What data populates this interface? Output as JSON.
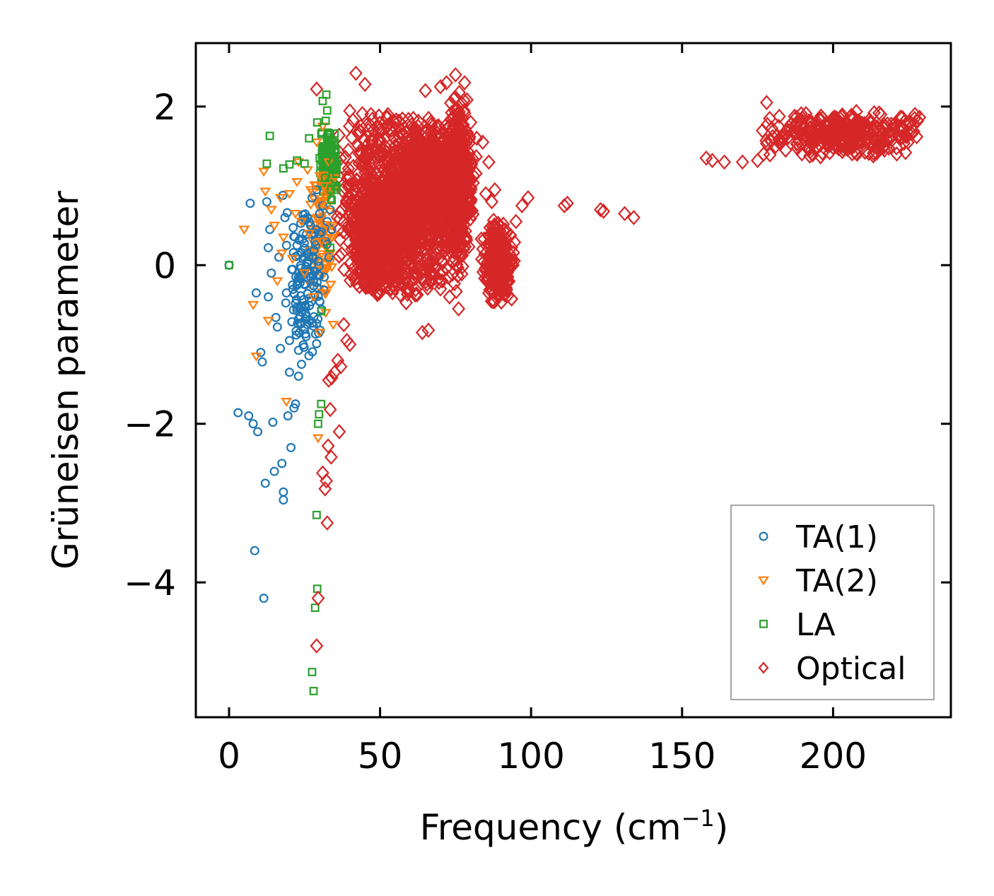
{
  "chart_data": {
    "type": "scatter",
    "title": "",
    "xlabel": "Frequency (cm",
    "xlabel_sup": "−1",
    "xlabel_suffix": ")",
    "ylabel": "Grüneisen parameter",
    "xlim": [
      -11,
      239
    ],
    "ylim": [
      -5.7,
      2.8
    ],
    "xticks": [
      0,
      50,
      100,
      150,
      200
    ],
    "xtick_labels": [
      "0",
      "50",
      "100",
      "150",
      "200"
    ],
    "yticks": [
      2,
      0,
      -2,
      -4
    ],
    "ytick_labels": [
      "2",
      "0",
      "−2",
      "−4"
    ],
    "grid": false,
    "legend_position": "bottom-right",
    "series": [
      {
        "name": "TA(1)",
        "marker": "circle",
        "color": "#1f77b4",
        "points": [
          [
            0,
            0
          ],
          [
            3,
            -1.86
          ],
          [
            6.5,
            -1.9
          ],
          [
            7,
            0.78
          ],
          [
            8,
            -2.0
          ],
          [
            8.5,
            -3.6
          ],
          [
            9,
            -0.35
          ],
          [
            9.5,
            -2.1
          ],
          [
            10.5,
            -1.1
          ],
          [
            11,
            -1.22
          ],
          [
            11.5,
            -4.2
          ],
          [
            12,
            -2.75
          ],
          [
            12.5,
            0.8
          ],
          [
            13,
            0.22
          ],
          [
            13.5,
            0.45
          ],
          [
            14,
            -0.1
          ],
          [
            14.5,
            -1.98
          ],
          [
            15,
            -2.6
          ],
          [
            15.5,
            -0.66
          ],
          [
            16,
            -0.78
          ],
          [
            17,
            -1.05
          ],
          [
            17.5,
            -2.5
          ],
          [
            18,
            -2.86
          ],
          [
            18,
            -2.96
          ],
          [
            18.5,
            0.6
          ],
          [
            19,
            -0.35
          ],
          [
            19.5,
            -1.9
          ],
          [
            20,
            -1.35
          ],
          [
            20.5,
            -2.3
          ],
          [
            21,
            -0.25
          ],
          [
            21.5,
            -1.8
          ],
          [
            22,
            -1.75
          ],
          [
            22.5,
            0.25
          ],
          [
            23,
            -1.4
          ],
          [
            23.5,
            -0.65
          ],
          [
            24,
            -1.25
          ],
          [
            24.5,
            0.4
          ],
          [
            25,
            -0.8
          ],
          [
            25.5,
            -0.9
          ],
          [
            26,
            0.6
          ],
          [
            26.5,
            -0.42
          ],
          [
            27,
            0.5
          ],
          [
            27.5,
            0.85
          ],
          [
            28,
            -0.2
          ],
          [
            28.5,
            0.3
          ],
          [
            29,
            0.95
          ],
          [
            29.5,
            0.05
          ],
          [
            30,
            0.65
          ],
          [
            30.5,
            0.42
          ],
          [
            31,
            0.75
          ],
          [
            31.5,
            -0.15
          ],
          [
            32,
            0.3
          ],
          [
            32.5,
            0.55
          ],
          [
            33,
            0.1
          ],
          [
            33.5,
            0.7
          ],
          [
            34,
            0.45
          ],
          [
            13,
            -0.4
          ],
          [
            16.5,
            0.1
          ],
          [
            20,
            -0.95
          ],
          [
            22.8,
            -0.2
          ],
          [
            25.8,
            0.15
          ],
          [
            28.8,
            0.45
          ],
          [
            17.8,
            0.88
          ]
        ]
      },
      {
        "name": "TA(2)",
        "marker": "triangle-down",
        "color": "#ff7f0e",
        "points": [
          [
            5,
            0.45
          ],
          [
            8,
            -0.5
          ],
          [
            9,
            -1.15
          ],
          [
            11.5,
            1.18
          ],
          [
            12,
            0.93
          ],
          [
            13,
            -0.7
          ],
          [
            14,
            0.7
          ],
          [
            15,
            0.5
          ],
          [
            16,
            -0.2
          ],
          [
            17,
            0.85
          ],
          [
            18,
            0.35
          ],
          [
            19,
            -1.72
          ],
          [
            20,
            0.9
          ],
          [
            21,
            0.08
          ],
          [
            22,
            0.65
          ],
          [
            23,
            1.3
          ],
          [
            24,
            0.55
          ],
          [
            25,
            -0.1
          ],
          [
            26,
            1.2
          ],
          [
            27,
            0.95
          ],
          [
            28,
            -0.4
          ],
          [
            29,
            1.55
          ],
          [
            29.5,
            -2.18
          ],
          [
            30,
            -0.85
          ],
          [
            30.5,
            0.3
          ],
          [
            31,
            1.75
          ],
          [
            31.5,
            1.0
          ],
          [
            32,
            -0.6
          ],
          [
            32.5,
            0.75
          ],
          [
            33,
            1.3
          ],
          [
            33.5,
            0.15
          ],
          [
            34,
            0.5
          ],
          [
            35,
            1.1
          ],
          [
            17.5,
            0.15
          ],
          [
            22.5,
            1.05
          ],
          [
            26.5,
            0.4
          ],
          [
            31.8,
            -0.35
          ],
          [
            34.5,
            -0.75
          ]
        ]
      },
      {
        "name": "LA",
        "marker": "square",
        "color": "#2ca02c",
        "points": [
          [
            0,
            0
          ],
          [
            12.5,
            1.28
          ],
          [
            13.5,
            1.63
          ],
          [
            18,
            1.22
          ],
          [
            20,
            1.27
          ],
          [
            22.5,
            1.32
          ],
          [
            25,
            1.28
          ],
          [
            26.5,
            1.6
          ],
          [
            27.5,
            -5.13
          ],
          [
            28,
            -5.37
          ],
          [
            28.5,
            -4.32
          ],
          [
            29,
            -3.15
          ],
          [
            29.2,
            -4.08
          ],
          [
            29.5,
            -2.0
          ],
          [
            29.8,
            -1.88
          ],
          [
            30.5,
            -1.75
          ],
          [
            30.5,
            -0.58
          ],
          [
            31,
            2.07
          ],
          [
            31.5,
            1.5
          ],
          [
            32,
            1.82
          ],
          [
            32.5,
            1.95
          ],
          [
            33,
            1.65
          ],
          [
            33.5,
            0.22
          ],
          [
            34,
            0.82
          ],
          [
            34.5,
            1.3
          ],
          [
            35,
            1.55
          ],
          [
            35.5,
            1.15
          ],
          [
            30,
            1.35
          ],
          [
            31.8,
            1.1
          ],
          [
            33.2,
            1.4
          ],
          [
            34.2,
            1.2
          ],
          [
            35.2,
            1.0
          ],
          [
            32.2,
            2.15
          ],
          [
            29.2,
            1.8
          ],
          [
            30.8,
            1.45
          ],
          [
            33.8,
            0.95
          ]
        ]
      },
      {
        "name": "Optical",
        "marker": "diamond",
        "color": "#d62728",
        "points": [
          [
            29,
            2.22
          ],
          [
            29,
            -4.8
          ],
          [
            29.5,
            -4.2
          ],
          [
            31,
            -2.62
          ],
          [
            31.8,
            -2.82
          ],
          [
            32.2,
            -2.72
          ],
          [
            32.5,
            -3.25
          ],
          [
            32.8,
            -2.28
          ],
          [
            33,
            -1.45
          ],
          [
            33.5,
            -1.82
          ],
          [
            33.8,
            -2.42
          ],
          [
            34,
            -1.42
          ],
          [
            35,
            -1.35
          ],
          [
            36,
            -1.2
          ],
          [
            36.5,
            -2.1
          ],
          [
            37,
            -1.28
          ],
          [
            38,
            -0.75
          ],
          [
            39,
            -0.95
          ],
          [
            40,
            -1.0
          ],
          [
            42,
            2.42
          ],
          [
            45,
            2.28
          ],
          [
            47,
            1.9
          ],
          [
            48,
            -0.3
          ],
          [
            50,
            -0.1
          ],
          [
            52,
            1.75
          ],
          [
            57,
            0.3
          ],
          [
            58,
            0.45
          ],
          [
            61,
            1.85
          ],
          [
            65,
            2.2
          ],
          [
            70,
            2.25
          ],
          [
            72,
            2.3
          ],
          [
            75,
            2.4
          ],
          [
            78,
            2.3
          ],
          [
            80,
            1.8
          ],
          [
            82,
            1.6
          ],
          [
            84,
            1.55
          ],
          [
            86,
            1.3
          ],
          [
            87,
            0.8
          ],
          [
            88,
            0.95
          ],
          [
            90,
            0.2
          ],
          [
            92,
            0.1
          ],
          [
            94,
            0.0
          ],
          [
            95,
            0.55
          ],
          [
            97,
            0.75
          ],
          [
            99,
            0.85
          ],
          [
            111,
            0.75
          ],
          [
            112,
            0.78
          ],
          [
            123,
            0.7
          ],
          [
            124,
            0.68
          ],
          [
            131,
            0.65
          ],
          [
            134,
            0.6
          ],
          [
            158,
            1.35
          ],
          [
            160,
            1.32
          ],
          [
            164,
            1.3
          ],
          [
            170,
            1.3
          ],
          [
            175,
            1.32
          ],
          [
            177,
            1.4
          ],
          [
            178,
            2.05
          ],
          [
            179,
            1.85
          ],
          [
            180,
            1.62
          ],
          [
            181,
            1.5
          ],
          [
            182,
            1.75
          ],
          [
            185,
            1.7
          ],
          [
            188,
            1.8
          ],
          [
            192,
            1.82
          ],
          [
            196,
            1.88
          ],
          [
            200,
            1.85
          ],
          [
            204,
            1.8
          ],
          [
            208,
            1.78
          ],
          [
            211,
            1.75
          ],
          [
            213,
            1.6
          ],
          [
            215,
            1.5
          ],
          [
            217,
            1.45
          ],
          [
            219,
            1.6
          ],
          [
            221,
            1.48
          ],
          [
            223,
            1.7
          ],
          [
            225,
            1.8
          ],
          [
            227,
            1.85
          ],
          [
            228,
            1.82
          ],
          [
            224,
            1.42
          ],
          [
            64,
            -0.85
          ],
          [
            66,
            -0.82
          ],
          [
            85,
            0.9
          ],
          [
            92,
            -0.2
          ],
          [
            70,
            -0.3
          ],
          [
            73,
            -0.4
          ],
          [
            76,
            -0.55
          ],
          [
            60,
            0.25
          ],
          [
            55,
            1.5
          ],
          [
            68,
            0.5
          ]
        ]
      }
    ]
  }
}
